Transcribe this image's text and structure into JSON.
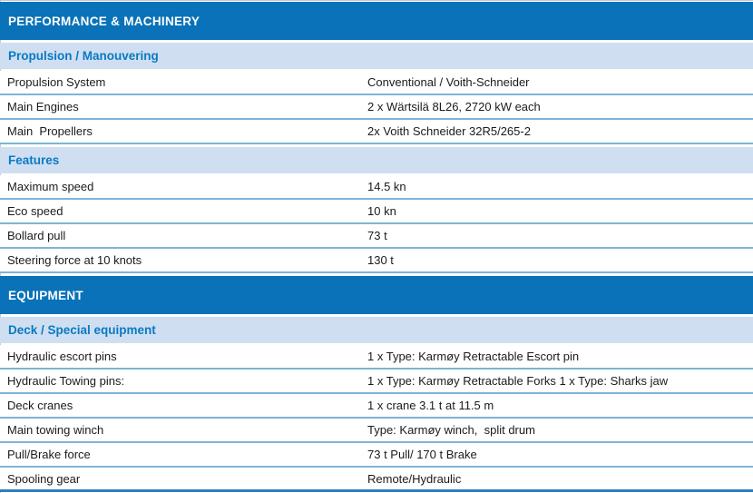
{
  "palette": {
    "section_header_bg": "#0a72b8",
    "section_header_text": "#ffffff",
    "group_header_bg": "#cfdff1",
    "group_header_text": "#0a79c3",
    "row_text": "#1b1b1b",
    "row_divider": "#7fb3d6",
    "bottom_bar": "#2e7fbb"
  },
  "sections": [
    {
      "title": "PERFORMANCE & MACHINERY",
      "groups": [
        {
          "title": "Propulsion / Manouvering",
          "rows": [
            {
              "label": "Propulsion System",
              "value": "Conventional / Voith-Schneider"
            },
            {
              "label": "Main Engines",
              "value": "2 x Wärtsilä 8L26, 2720 kW each"
            },
            {
              "label": "Main  Propellers",
              "value": "2x Voith Schneider 32R5/265-2"
            }
          ]
        },
        {
          "title": "Features",
          "rows": [
            {
              "label": "Maximum speed",
              "value": "14.5 kn"
            },
            {
              "label": "Eco speed",
              "value": "10 kn"
            },
            {
              "label": "Bollard pull",
              "value": "73 t"
            },
            {
              "label": "Steering force at 10 knots",
              "value": "130 t"
            }
          ]
        }
      ]
    },
    {
      "title": "EQUIPMENT",
      "groups": [
        {
          "title": "Deck / Special equipment",
          "rows": [
            {
              "label": "Hydraulic escort pins",
              "value": "1 x Type: Karmøy Retractable Escort pin"
            },
            {
              "label": "Hydraulic Towing pins:",
              "value": "1 x Type: Karmøy Retractable Forks 1 x Type: Sharks jaw"
            },
            {
              "label": "Deck cranes",
              "value": "1 x crane 3.1 t at 11.5 m"
            },
            {
              "label": "Main towing winch",
              "value": "Type: Karmøy winch,  split drum"
            },
            {
              "label": "Pull/Brake force",
              "value": "73 t Pull/ 170 t Brake"
            },
            {
              "label": "Spooling gear",
              "value": "Remote/Hydraulic"
            }
          ]
        }
      ]
    }
  ]
}
